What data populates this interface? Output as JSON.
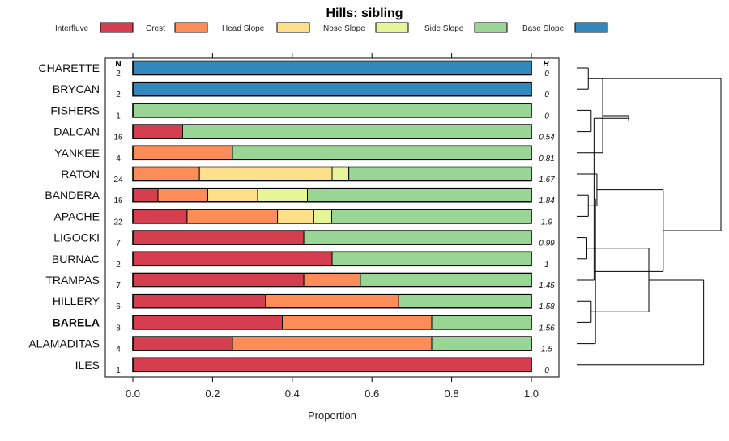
{
  "chart_data": {
    "type": "bar",
    "orientation": "horizontal",
    "stacked": true,
    "title": "Hills: sibling",
    "xlabel": "Proportion",
    "xlim": [
      0,
      1
    ],
    "xticks": [
      "0.0",
      "0.2",
      "0.4",
      "0.6",
      "0.8",
      "1.0"
    ],
    "n_header": "N",
    "h_header": "H",
    "legend": [
      {
        "name": "Interfluve",
        "color": "#d53e4f"
      },
      {
        "name": "Crest",
        "color": "#fc8d59"
      },
      {
        "name": "Head Slope",
        "color": "#fee08b"
      },
      {
        "name": "Nose Slope",
        "color": "#e6f598"
      },
      {
        "name": "Side Slope",
        "color": "#99d594"
      },
      {
        "name": "Base Slope",
        "color": "#3288bd"
      }
    ],
    "rows": [
      {
        "name": "CHARETTE",
        "n": "2",
        "h": "0",
        "bold": false,
        "values": [
          0,
          0,
          0,
          0,
          0,
          1
        ]
      },
      {
        "name": "BRYCAN",
        "n": "2",
        "h": "0",
        "bold": false,
        "values": [
          0,
          0,
          0,
          0,
          0,
          1
        ]
      },
      {
        "name": "FISHERS",
        "n": "1",
        "h": "0",
        "bold": false,
        "values": [
          0,
          0,
          0,
          0,
          1,
          0
        ]
      },
      {
        "name": "DALCAN",
        "n": "16",
        "h": "0.54",
        "bold": false,
        "values": [
          0.125,
          0,
          0,
          0,
          0.875,
          0
        ]
      },
      {
        "name": "YANKEE",
        "n": "4",
        "h": "0.81",
        "bold": false,
        "values": [
          0,
          0.25,
          0,
          0,
          0.75,
          0
        ]
      },
      {
        "name": "RATON",
        "n": "24",
        "h": "1.67",
        "bold": false,
        "values": [
          0,
          0.167,
          0.333,
          0.042,
          0.458,
          0
        ]
      },
      {
        "name": "BANDERA",
        "n": "16",
        "h": "1.84",
        "bold": false,
        "values": [
          0.063,
          0.125,
          0.125,
          0.125,
          0.562,
          0
        ]
      },
      {
        "name": "APACHE",
        "n": "22",
        "h": "1.9",
        "bold": false,
        "values": [
          0.136,
          0.227,
          0.091,
          0.045,
          0.501,
          0
        ]
      },
      {
        "name": "LIGOCKI",
        "n": "7",
        "h": "0.99",
        "bold": false,
        "values": [
          0.429,
          0,
          0,
          0,
          0.571,
          0
        ]
      },
      {
        "name": "BURNAC",
        "n": "2",
        "h": "1",
        "bold": false,
        "values": [
          0.5,
          0,
          0,
          0,
          0.5,
          0
        ]
      },
      {
        "name": "TRAMPAS",
        "n": "7",
        "h": "1.45",
        "bold": false,
        "values": [
          0.429,
          0.142,
          0,
          0,
          0.429,
          0
        ]
      },
      {
        "name": "HILLERY",
        "n": "6",
        "h": "1.58",
        "bold": false,
        "values": [
          0.333,
          0.334,
          0,
          0,
          0.333,
          0
        ]
      },
      {
        "name": "BARELA",
        "n": "8",
        "h": "1.56",
        "bold": true,
        "values": [
          0.375,
          0.375,
          0,
          0,
          0.25,
          0
        ]
      },
      {
        "name": "ALAMADITAS",
        "n": "4",
        "h": "1.5",
        "bold": false,
        "values": [
          0.25,
          0.5,
          0,
          0,
          0.25,
          0
        ]
      },
      {
        "name": "ILES",
        "n": "1",
        "h": "0",
        "bold": false,
        "values": [
          1,
          0,
          0,
          0,
          0,
          0
        ]
      }
    ],
    "dendrogram_merges": [
      {
        "a": 0,
        "b": 1,
        "height": 0.08
      },
      {
        "a": 2,
        "b": 3,
        "height": 0.1
      },
      {
        "a": 15,
        "b": 4,
        "height": 0.18
      },
      {
        "a": 6,
        "b": 7,
        "height": 0.08
      },
      {
        "a": 5,
        "b": 18,
        "height": 0.14
      },
      {
        "a": 16,
        "b": 17,
        "height": 0.36
      },
      {
        "a": 8,
        "b": 9,
        "height": 0.07
      },
      {
        "a": 20,
        "b": 10,
        "height": 0.12
      },
      {
        "a": 11,
        "b": 12,
        "height": 0.1
      },
      {
        "a": 22,
        "b": 13,
        "height": 0.13
      },
      {
        "a": 21,
        "b": 23,
        "height": 0.5
      },
      {
        "a": 19,
        "b": 24,
        "height": 0.6
      },
      {
        "a": 25,
        "b": 14,
        "height": 0.88
      },
      {
        "a": 15,
        "b": 26,
        "height": 1.0
      }
    ]
  }
}
